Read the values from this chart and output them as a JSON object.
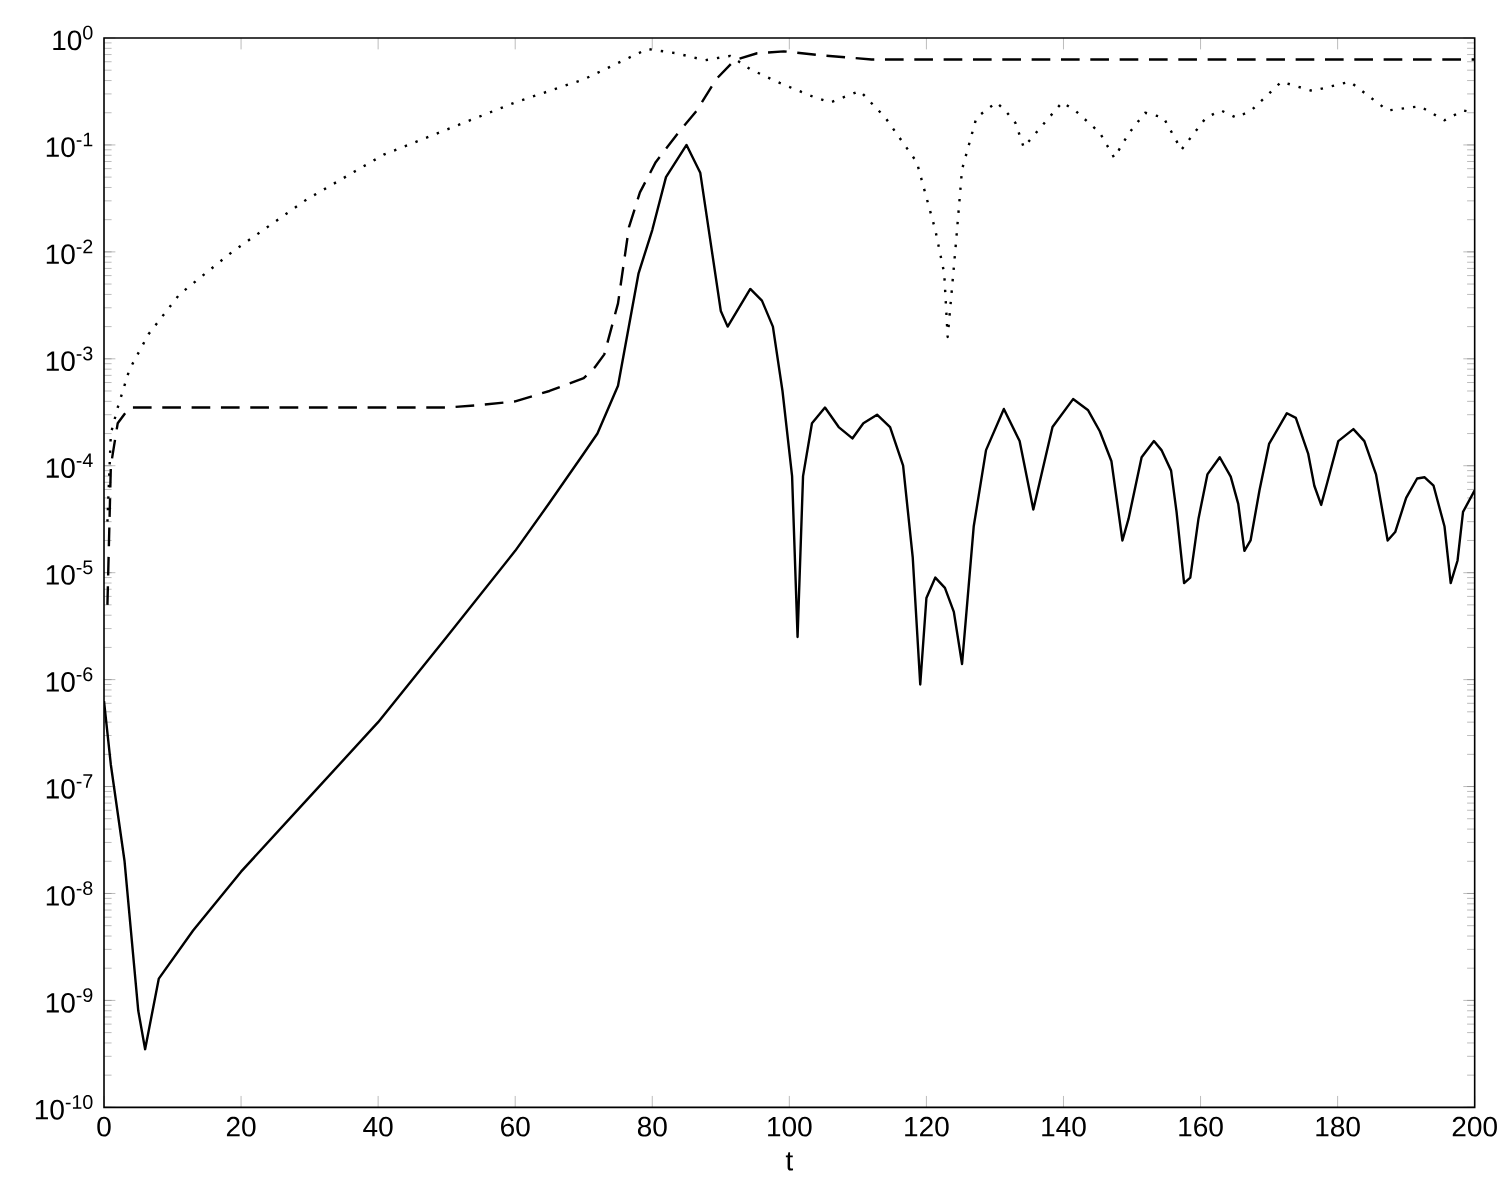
{
  "chart_data": {
    "type": "line",
    "xlabel": "t",
    "log": "y",
    "grid": false,
    "marker": "none",
    "xlim": [
      0,
      200
    ],
    "xticks": [
      0,
      20,
      40,
      60,
      80,
      100,
      120,
      140,
      160,
      180,
      200
    ],
    "ylim": [
      1e-10,
      1
    ],
    "yticks": [
      {
        "value": 1e-10,
        "label": "10$^{-10}$"
      },
      {
        "value": 1e-09,
        "label": "10$^{-9}$"
      },
      {
        "value": 1e-08,
        "label": "10$^{-8}$"
      },
      {
        "value": 1e-07,
        "label": "10$^{-7}$"
      },
      {
        "value": 1e-06,
        "label": "10$^{-6}$"
      },
      {
        "value": 1e-05,
        "label": "10$^{-5}$"
      },
      {
        "value": 0.0001,
        "label": "10$^{-4}$"
      },
      {
        "value": 0.001,
        "label": "10$^{-3}$"
      },
      {
        "value": 0.01,
        "label": "10$^{-2}$"
      },
      {
        "value": 0.1,
        "label": "10$^{-1}$"
      },
      {
        "value": 1,
        "label": "10$^{0}$"
      }
    ],
    "series": [
      {
        "color": "#000000",
        "line_style": "solid",
        "x": [
          0,
          1,
          3,
          5,
          6,
          8,
          13,
          20,
          30,
          40,
          50,
          60,
          65,
          70,
          72,
          75,
          78,
          80,
          82,
          85,
          87,
          90,
          91,
          94.3,
          96,
          97.6,
          99,
          100.4,
          101.2,
          102,
          103.3,
          105.2,
          107.2,
          109.2,
          110.8,
          112.8,
          114.7,
          116.6,
          118,
          119.1,
          120,
          121.3,
          122.7,
          124,
          125.2,
          126.9,
          128.7,
          131.3,
          133.6,
          135.6,
          136.5,
          138.4,
          141.4,
          143.6,
          145.3,
          147,
          148.6,
          149.5,
          151.4,
          153.2,
          154.3,
          155.7,
          156.5,
          157.6,
          158.5,
          159.7,
          161,
          162.8,
          164.4,
          165.5,
          166.4,
          167.3,
          168.6,
          170,
          172.6,
          173.9,
          175.7,
          176.6,
          177.6,
          178.5,
          180.1,
          182.3,
          183.9,
          185.6,
          187.3,
          188.4,
          190,
          191.6,
          192.7,
          194,
          195.6,
          196.5,
          197.5,
          198.3,
          200
        ],
        "values": [
          6.3e-07,
          1.6e-07,
          2e-08,
          8e-10,
          3.5e-10,
          1.6e-09,
          4.5e-09,
          1.6e-08,
          8e-08,
          4e-07,
          2.5e-06,
          1.6e-05,
          4.5e-05,
          0.00013,
          0.0002,
          0.00056,
          0.0063,
          0.016,
          0.05,
          0.1,
          0.055,
          0.0028,
          0.002,
          0.0045,
          0.0035,
          0.002,
          0.0005,
          8e-05,
          2.5e-06,
          8e-05,
          0.00025,
          0.00035,
          0.00023,
          0.00018,
          0.00025,
          0.0003,
          0.00023,
          0.0001,
          1.4e-05,
          9e-07,
          5.8e-06,
          9e-06,
          7.2e-06,
          4.3e-06,
          1.4e-06,
          2.7e-05,
          0.00014,
          0.00034,
          0.00017,
          3.9e-05,
          6.9e-05,
          0.00023,
          0.00042,
          0.00033,
          0.00021,
          0.00011,
          2e-05,
          3.2e-05,
          0.00012,
          0.00017,
          0.00014,
          9e-05,
          3.7e-05,
          8e-06,
          9e-06,
          3.2e-05,
          8.3e-05,
          0.00012,
          7.9e-05,
          4.4e-05,
          1.6e-05,
          2e-05,
          5.9e-05,
          0.00016,
          0.00031,
          0.00028,
          0.00013,
          6.5e-05,
          4.3e-05,
          7e-05,
          0.00017,
          0.00022,
          0.00017,
          8.3e-05,
          2e-05,
          2.4e-05,
          5e-05,
          7.6e-05,
          7.8e-05,
          6.5e-05,
          2.7e-05,
          8e-06,
          1.3e-05,
          3.7e-05,
          5.9e-05
        ]
      },
      {
        "color": "#000000",
        "line_style": "dashed",
        "x": [
          0.5,
          1,
          2,
          3.7,
          10,
          30,
          50,
          55,
          60,
          65,
          70,
          71.6,
          73,
          75,
          76.6,
          78.2,
          80.5,
          83.8,
          86.5,
          89.3,
          92,
          95.3,
          99.2,
          104.5,
          112,
          200
        ],
        "values": [
          5e-06,
          0.0001,
          0.00025,
          0.00035,
          0.00035,
          0.00035,
          0.00035,
          0.00037,
          0.0004,
          0.0005,
          0.00066,
          0.00083,
          0.0011,
          0.0033,
          0.017,
          0.036,
          0.069,
          0.13,
          0.21,
          0.41,
          0.62,
          0.72,
          0.75,
          0.69,
          0.63,
          0.63
        ]
      },
      {
        "color": "#000000",
        "line_style": "dotted",
        "x": [
          0.5,
          1,
          2,
          3.7,
          6.5,
          11,
          18.7,
          29.6,
          40.8,
          60,
          70,
          79.3,
          83.5,
          87.7,
          91.4,
          94.3,
          98.6,
          103.6,
          106,
          110.3,
          114,
          118.6,
          121.3,
          122.6,
          123.1,
          124.2,
          125.2,
          127.3,
          130.2,
          131.5,
          133,
          134.2,
          136,
          139.8,
          141.7,
          145.3,
          147.4,
          149.6,
          151.9,
          154.6,
          157.2,
          160.8,
          163,
          165.2,
          167.4,
          171.8,
          176.3,
          181.8,
          187.3,
          192,
          195.6,
          198.3,
          200
        ],
        "values": [
          3e-05,
          0.0002,
          0.00035,
          0.00079,
          0.0017,
          0.004,
          0.01,
          0.031,
          0.081,
          0.25,
          0.41,
          0.79,
          0.72,
          0.62,
          0.68,
          0.51,
          0.38,
          0.28,
          0.25,
          0.32,
          0.18,
          0.069,
          0.016,
          0.0063,
          0.0016,
          0.01,
          0.059,
          0.18,
          0.25,
          0.21,
          0.16,
          0.095,
          0.13,
          0.25,
          0.21,
          0.13,
          0.076,
          0.13,
          0.2,
          0.18,
          0.09,
          0.18,
          0.21,
          0.18,
          0.21,
          0.39,
          0.32,
          0.39,
          0.21,
          0.23,
          0.17,
          0.21,
          0.2
        ]
      }
    ]
  }
}
